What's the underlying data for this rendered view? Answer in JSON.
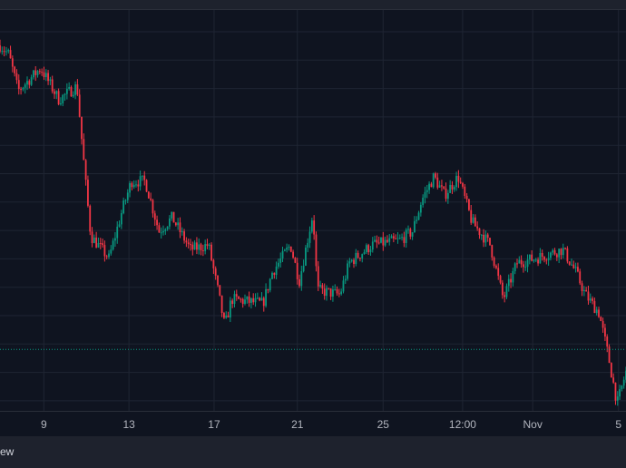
{
  "chart_data": {
    "type": "candlestick",
    "title": "",
    "xlabel": "",
    "ylabel": "",
    "x_ticks": [
      {
        "label": "9",
        "t": 7
      },
      {
        "label": "13",
        "t": 20.6
      },
      {
        "label": "17",
        "t": 34.2
      },
      {
        "label": "21",
        "t": 47.5
      },
      {
        "label": "25",
        "t": 61.2
      },
      {
        "label": "12:00",
        "t": 73.9
      },
      {
        "label": "Nov",
        "t": 85.1
      },
      {
        "label": "5",
        "t": 98.8
      }
    ],
    "xlim": [
      0,
      100
    ],
    "ylim": [
      0,
      100
    ],
    "grid": true,
    "last_price": 14.4,
    "up_color": "#089981",
    "down_color": "#f23645",
    "price_path": [
      [
        0,
        88.9
      ],
      [
        1.4,
        86.7
      ],
      [
        2.9,
        77.8
      ],
      [
        6.5,
        83.3
      ],
      [
        9.4,
        75.6
      ],
      [
        12.3,
        78.9
      ],
      [
        13,
        66.7
      ],
      [
        13.8,
        53.3
      ],
      [
        14.5,
        42.2
      ],
      [
        17.4,
        36.7
      ],
      [
        19.6,
        48.9
      ],
      [
        21,
        55.6
      ],
      [
        23.2,
        55.6
      ],
      [
        25.4,
        43.3
      ],
      [
        27.5,
        46.7
      ],
      [
        30.4,
        38.9
      ],
      [
        33.3,
        40
      ],
      [
        34.8,
        28.9
      ],
      [
        35.9,
        20
      ],
      [
        37,
        26.7
      ],
      [
        42,
        25.6
      ],
      [
        43.5,
        33.3
      ],
      [
        46.4,
        40
      ],
      [
        47.8,
        31.1
      ],
      [
        50,
        47.8
      ],
      [
        50.7,
        28.9
      ],
      [
        54.3,
        27.8
      ],
      [
        55.8,
        35.6
      ],
      [
        59.4,
        40
      ],
      [
        63.8,
        41.1
      ],
      [
        65.9,
        43.3
      ],
      [
        67.4,
        51.1
      ],
      [
        69.3,
        56.7
      ],
      [
        71,
        52.2
      ],
      [
        73.2,
        56.7
      ],
      [
        75.4,
        45.6
      ],
      [
        78.3,
        40
      ],
      [
        80.4,
        26.7
      ],
      [
        82.6,
        35.6
      ],
      [
        85.5,
        36.7
      ],
      [
        89.9,
        38.9
      ],
      [
        92,
        33.3
      ],
      [
        93.5,
        27.8
      ],
      [
        95.7,
        23.3
      ],
      [
        97.1,
        13.3
      ],
      [
        98.6,
        1.1
      ],
      [
        100,
        8.9
      ]
    ]
  },
  "footer": {
    "brand_text": "ew"
  }
}
